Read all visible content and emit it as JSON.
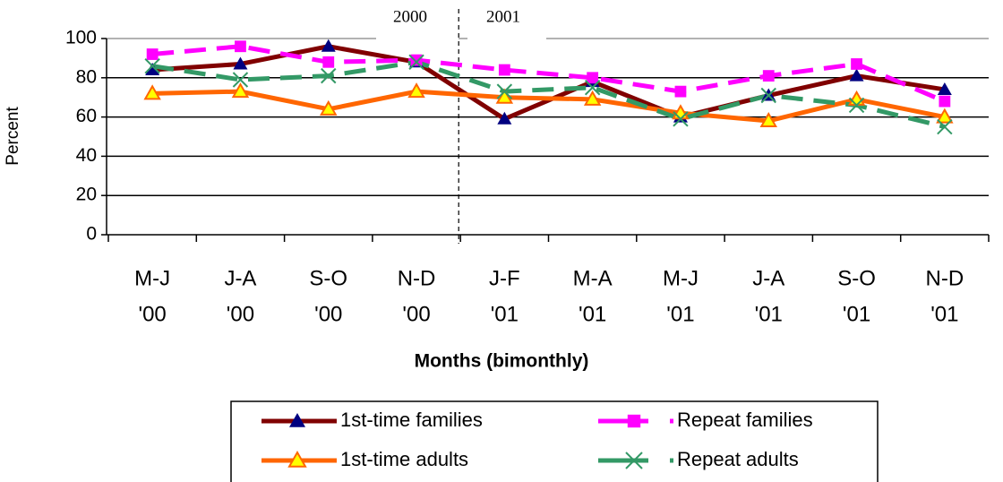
{
  "chart_data": {
    "type": "line",
    "x_label": "Months (bimonthly)",
    "y_label": "Percent",
    "annotations": [
      "2000",
      "2001"
    ],
    "categories": [
      [
        "M-J",
        "'00"
      ],
      [
        "J-A",
        "'00"
      ],
      [
        "S-O",
        "'00"
      ],
      [
        "N-D",
        "'00"
      ],
      [
        "J-F",
        "'01"
      ],
      [
        "M-A",
        "'01"
      ],
      [
        "M-J",
        "'01"
      ],
      [
        "J-A",
        "'01"
      ],
      [
        "S-O",
        "'01"
      ],
      [
        "N-D",
        "'01"
      ]
    ],
    "series": [
      {
        "name": "1st-time families",
        "color": "#800000",
        "dashed": false,
        "marker": "triangle",
        "marker_color": "#000080",
        "values": [
          84,
          87,
          96,
          88,
          59,
          78,
          60,
          71,
          81,
          74
        ]
      },
      {
        "name": "Repeat families",
        "color": "#ff00ff",
        "dashed": true,
        "marker": "square",
        "marker_color": "#ff00ff",
        "values": [
          92,
          96,
          88,
          89,
          84,
          80,
          73,
          81,
          87,
          68
        ]
      },
      {
        "name": "1st-time adults",
        "color": "#ff6600",
        "dashed": false,
        "marker": "triangle",
        "marker_color": "#ffff00",
        "values": [
          72,
          73,
          64,
          73,
          70,
          69,
          62,
          58,
          69,
          60
        ]
      },
      {
        "name": "Repeat adults",
        "color": "#339966",
        "dashed": true,
        "marker": "x",
        "marker_color": "#339966",
        "values": [
          86,
          79,
          81,
          88,
          73,
          75,
          59,
          71,
          66,
          55
        ]
      }
    ],
    "ylim": [
      0,
      100
    ],
    "yticks": [
      0,
      20,
      40,
      60,
      80,
      100
    ],
    "grid": true
  }
}
